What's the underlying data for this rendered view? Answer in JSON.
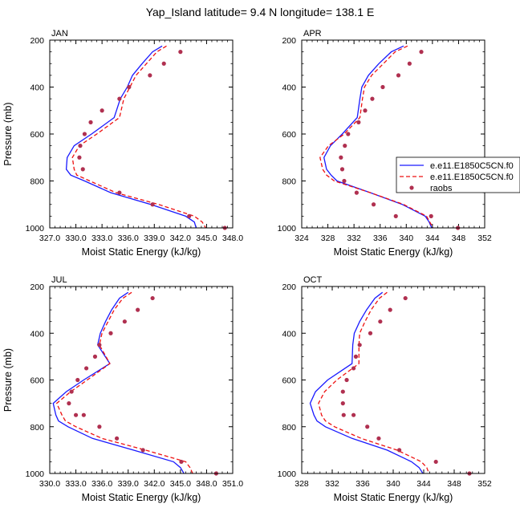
{
  "title": "Yap_Island  latitude= 9.4 N longitude= 138.1 E",
  "legend_entries": [
    "e.e11.E1850C5CN.f0",
    "e.e11.E1850C5CN.f0",
    "raobs"
  ],
  "colors": {
    "model1": "#1a1aff",
    "model2": "#ee1111",
    "obs": "#b03050"
  },
  "chart_data": [
    {
      "type": "line",
      "panel_label": "JAN",
      "xlabel": "Moist Static Energy (kJ/kg)",
      "ylabel": "Pressure (mb)",
      "xlim": [
        327,
        348
      ],
      "xticks": [
        327,
        330,
        333,
        336,
        339,
        342,
        345,
        348
      ],
      "xtick_labels": [
        "327.0",
        "330.0",
        "333.0",
        "336.0",
        "339.0",
        "342.0",
        "345.0",
        "348.0"
      ],
      "ylim": [
        1000,
        200
      ],
      "yticks": [
        200,
        400,
        600,
        800,
        1000
      ],
      "ytick_labels": [
        "200",
        "400",
        "600",
        "800",
        "1000"
      ],
      "series": [
        {
          "name": "e.e11.E1850C5CN.f0",
          "style": "solid",
          "x": [
            339.9,
            338.8,
            337.6,
            336.5,
            335.9,
            335.1,
            334.4,
            331.8,
            329.8,
            329.0,
            328.9,
            329.4,
            331.0,
            334.0,
            338.6,
            342.6,
            343.6,
            343.8
          ],
          "y": [
            225,
            250,
            300,
            350,
            400,
            450,
            530,
            600,
            650,
            700,
            750,
            775,
            800,
            850,
            900,
            950,
            975,
            1000
          ]
        },
        {
          "name": "e.e11.E1850C5CN.f0",
          "style": "dashed",
          "x": [
            340.4,
            339.3,
            338.1,
            336.9,
            336.2,
            335.5,
            335.0,
            332.4,
            330.4,
            329.6,
            329.8,
            330.1,
            331.6,
            334.6,
            339.5,
            343.6,
            344.5,
            344.9
          ],
          "y": [
            225,
            250,
            300,
            350,
            400,
            450,
            530,
            600,
            650,
            700,
            750,
            775,
            800,
            850,
            900,
            950,
            975,
            1000
          ]
        },
        {
          "name": "raobs",
          "style": "markers",
          "x": [
            342.0,
            340.1,
            338.5,
            336.1,
            335.0,
            333.0,
            331.7,
            331.0,
            330.5,
            330.4,
            330.8,
            335.0,
            338.8,
            343.0,
            347.1
          ],
          "y": [
            250,
            300,
            350,
            400,
            450,
            500,
            550,
            600,
            650,
            700,
            750,
            850,
            900,
            950,
            1000
          ]
        }
      ]
    },
    {
      "type": "line",
      "panel_label": "APR",
      "xlabel": "Moist Static Energy (kJ/kg)",
      "ylabel": "",
      "xlim": [
        324,
        352
      ],
      "xticks": [
        324,
        328,
        332,
        336,
        340,
        344,
        348,
        352
      ],
      "xtick_labels": [
        "324",
        "328",
        "332",
        "336",
        "340",
        "344",
        "348",
        "352"
      ],
      "ylim": [
        1000,
        200
      ],
      "yticks": [
        200,
        400,
        600,
        800,
        1000
      ],
      "ytick_labels": [
        "200",
        "400",
        "600",
        "800",
        "1000"
      ],
      "series": [
        {
          "name": "e.e11.E1850C5CN.f0",
          "style": "solid",
          "x": [
            339.6,
            337.7,
            335.8,
            334.2,
            333.2,
            332.9,
            332.5,
            330.2,
            328.4,
            327.4,
            327.8,
            328.5,
            329.4,
            334.5,
            339.4,
            342.9,
            343.5,
            343.9
          ],
          "y": [
            225,
            250,
            300,
            350,
            400,
            450,
            530,
            600,
            650,
            700,
            750,
            775,
            800,
            850,
            900,
            950,
            975,
            1000
          ]
        },
        {
          "name": "e.e11.E1850C5CN.f0",
          "style": "dashed",
          "x": [
            340.2,
            338.3,
            336.5,
            334.7,
            333.6,
            333.3,
            332.9,
            330.5,
            328.1,
            326.8,
            327.2,
            327.8,
            329.0,
            334.5,
            339.6,
            343.1,
            343.6,
            344.1
          ],
          "y": [
            225,
            250,
            300,
            350,
            400,
            450,
            530,
            600,
            650,
            700,
            750,
            775,
            800,
            850,
            900,
            950,
            975,
            1000
          ]
        },
        {
          "name": "raobs",
          "style": "markers",
          "x": [
            342.3,
            340.5,
            338.8,
            336.4,
            334.8,
            333.7,
            332.7,
            331.1,
            330.6,
            330.0,
            330.2,
            330.5,
            332.4,
            335.0,
            338.4,
            343.8,
            347.9
          ],
          "y": [
            250,
            300,
            350,
            400,
            450,
            500,
            550,
            600,
            650,
            700,
            750,
            800,
            850,
            900,
            950,
            950,
            1000
          ]
        }
      ]
    },
    {
      "type": "line",
      "panel_label": "JUL",
      "xlabel": "Moist Static Energy (kJ/kg)",
      "ylabel": "Pressure (mb)",
      "xlim": [
        330,
        351
      ],
      "xticks": [
        330,
        333,
        336,
        339,
        342,
        345,
        348,
        351
      ],
      "xtick_labels": [
        "330.0",
        "333.0",
        "336.0",
        "339.0",
        "342.0",
        "345.0",
        "348.0",
        "351.0"
      ],
      "ylim": [
        1000,
        200
      ],
      "yticks": [
        200,
        400,
        600,
        800,
        1000
      ],
      "ytick_labels": [
        "200",
        "400",
        "600",
        "800",
        "1000"
      ],
      "series": [
        {
          "name": "e.e11.E1850C5CN.f0",
          "style": "solid",
          "x": [
            339.0,
            338.0,
            337.1,
            336.4,
            335.8,
            335.5,
            336.9,
            333.9,
            331.9,
            330.4,
            330.7,
            331.0,
            332.1,
            334.9,
            339.6,
            344.2,
            345.0,
            345.4
          ],
          "y": [
            225,
            250,
            300,
            350,
            400,
            450,
            530,
            600,
            650,
            700,
            750,
            775,
            800,
            850,
            900,
            950,
            975,
            1000
          ]
        },
        {
          "name": "e.e11.E1850C5CN.f0",
          "style": "dashed",
          "x": [
            339.4,
            338.4,
            337.4,
            336.7,
            336.0,
            335.7,
            336.9,
            334.3,
            332.4,
            330.8,
            331.4,
            331.8,
            333.0,
            336.0,
            341.0,
            345.6,
            346.1,
            346.4
          ],
          "y": [
            225,
            250,
            300,
            350,
            400,
            450,
            530,
            600,
            650,
            700,
            750,
            775,
            800,
            850,
            900,
            950,
            975,
            1000
          ]
        },
        {
          "name": "raobs",
          "style": "markers",
          "x": [
            341.8,
            340.1,
            338.6,
            337.0,
            335.7,
            335.2,
            334.2,
            333.2,
            332.5,
            332.2,
            333.0,
            333.9,
            335.7,
            337.7,
            340.7,
            345.1,
            349.1
          ],
          "y": [
            250,
            300,
            350,
            400,
            450,
            500,
            550,
            600,
            650,
            700,
            750,
            750,
            800,
            850,
            900,
            950,
            1000
          ]
        }
      ]
    },
    {
      "type": "line",
      "panel_label": "OCT",
      "xlabel": "Moist Static Energy (kJ/kg)",
      "ylabel": "",
      "xlim": [
        328,
        352
      ],
      "xticks": [
        328,
        332,
        336,
        340,
        344,
        348,
        352
      ],
      "xtick_labels": [
        "328",
        "332",
        "336",
        "340",
        "344",
        "348",
        "352"
      ],
      "ylim": [
        1000,
        200
      ],
      "yticks": [
        200,
        400,
        600,
        800,
        1000
      ],
      "ytick_labels": [
        "200",
        "400",
        "600",
        "800",
        "1000"
      ],
      "series": [
        {
          "name": "e.e11.E1850C5CN.f0",
          "style": "solid",
          "x": [
            338.6,
            337.6,
            336.5,
            335.6,
            334.9,
            334.7,
            334.6,
            331.4,
            329.8,
            329.1,
            329.6,
            330.0,
            331.1,
            334.6,
            339.2,
            342.4,
            343.4,
            343.9
          ],
          "y": [
            225,
            250,
            300,
            350,
            400,
            450,
            530,
            600,
            650,
            700,
            750,
            775,
            800,
            850,
            900,
            950,
            975,
            1000
          ]
        },
        {
          "name": "e.e11.E1850C5CN.f0",
          "style": "dashed",
          "x": [
            339.2,
            338.2,
            337.1,
            336.3,
            335.6,
            335.5,
            335.5,
            332.6,
            331.0,
            330.2,
            330.6,
            331.1,
            332.3,
            335.8,
            340.5,
            343.7,
            344.4,
            344.7
          ],
          "y": [
            225,
            250,
            300,
            350,
            400,
            450,
            530,
            600,
            650,
            700,
            750,
            775,
            800,
            850,
            900,
            950,
            975,
            1000
          ]
        },
        {
          "name": "raobs",
          "style": "markers",
          "x": [
            341.6,
            339.6,
            338.3,
            337.0,
            335.6,
            335.1,
            334.8,
            333.9,
            333.4,
            333.4,
            333.5,
            334.8,
            336.6,
            338.1,
            340.8,
            345.6,
            350.0
          ],
          "y": [
            250,
            300,
            350,
            400,
            450,
            500,
            550,
            600,
            650,
            700,
            750,
            750,
            800,
            850,
            900,
            950,
            1000
          ]
        }
      ]
    }
  ]
}
